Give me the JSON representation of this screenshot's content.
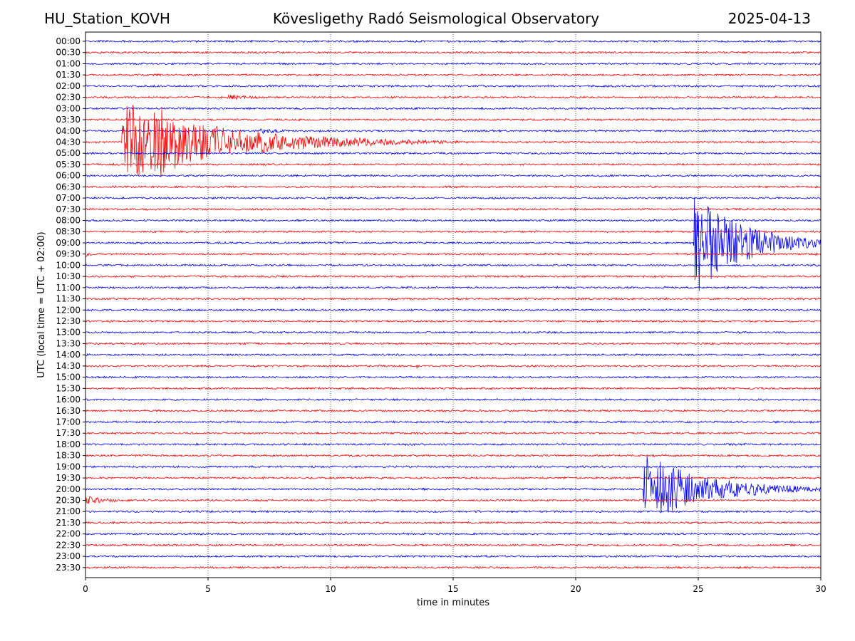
{
  "header": {
    "station": "HU_Station_KOVH",
    "title": "Kövesligethy Radó Seismological Observatory",
    "date": "2025-04-13"
  },
  "chart_data": {
    "type": "line",
    "subtype": "helicorder",
    "xlabel": "time in minutes",
    "ylabel": "UTC (local time = UTC + 02:00)",
    "xlim": [
      0,
      30
    ],
    "x_ticks": [
      0,
      5,
      10,
      15,
      20,
      25,
      30
    ],
    "grid": "vertical dotted at 5-minute ticks",
    "legend": "none",
    "trace_colors": [
      "#0000ff",
      "#ff0000"
    ],
    "row_labels": [
      "00:00",
      "00:30",
      "01:00",
      "01:30",
      "02:00",
      "02:30",
      "03:00",
      "03:30",
      "04:00",
      "04:30",
      "05:00",
      "05:30",
      "06:00",
      "06:30",
      "07:00",
      "07:30",
      "08:00",
      "08:30",
      "09:00",
      "09:30",
      "10:00",
      "10:30",
      "11:00",
      "11:30",
      "12:00",
      "12:30",
      "13:00",
      "13:30",
      "14:00",
      "14:30",
      "15:00",
      "15:30",
      "16:00",
      "16:30",
      "17:00",
      "17:30",
      "18:00",
      "18:30",
      "19:00",
      "19:30",
      "20:00",
      "20:30",
      "21:00",
      "21:30",
      "22:00",
      "22:30",
      "23:00",
      "23:30"
    ],
    "events": [
      {
        "row": "04:30",
        "start_min": 1.5,
        "duration_min": 15,
        "amplitude_rows": 3.8
      },
      {
        "row": "04:30",
        "start_min": 3.0,
        "duration_min": 8,
        "amplitude_rows": 3.5
      },
      {
        "row": "02:30",
        "start_min": 5.8,
        "duration_min": 6,
        "amplitude_rows": 0.25
      },
      {
        "row": "04:00",
        "start_min": 7.1,
        "duration_min": 3,
        "amplitude_rows": 0.35
      },
      {
        "row": "09:00",
        "start_min": 24.8,
        "duration_min": 7,
        "amplitude_rows": 5
      },
      {
        "row": "09:30",
        "start_min": 0.0,
        "duration_min": 1.3,
        "amplitude_rows": 0.25
      },
      {
        "row": "20:00",
        "start_min": 22.75,
        "duration_min": 9,
        "amplitude_rows": 3.5
      },
      {
        "row": "20:30",
        "start_min": 0.0,
        "duration_min": 3.5,
        "amplitude_rows": 0.45
      },
      {
        "row": "14:30",
        "start_min": 12.0,
        "duration_min": 0.6,
        "amplitude_rows": 0.2
      },
      {
        "row": "14:30",
        "start_min": 13.5,
        "duration_min": 0.4,
        "amplitude_rows": 0.25
      }
    ]
  }
}
